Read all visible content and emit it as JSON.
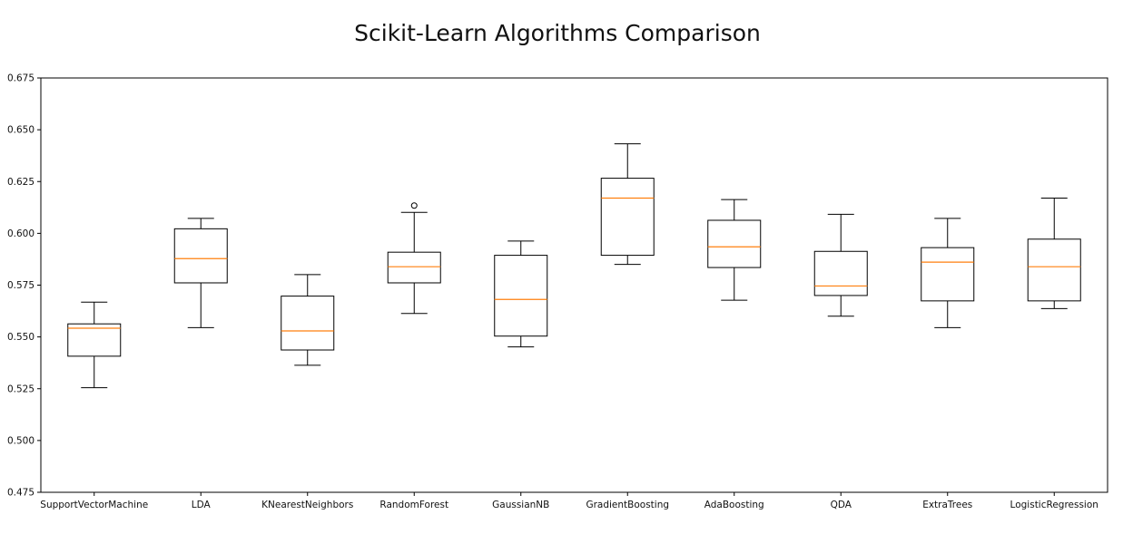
{
  "chart_data": {
    "type": "box",
    "title": "Scikit-Learn Algorithms Comparison",
    "xlabel": "",
    "ylabel": "",
    "ylim": [
      0.475,
      0.675
    ],
    "yticks": [
      "0.475",
      "0.500",
      "0.525",
      "0.550",
      "0.575",
      "0.600",
      "0.625",
      "0.650",
      "0.675"
    ],
    "grid": false,
    "legend": "none",
    "colors": {
      "box": "#000000",
      "median": "#ff7f0e",
      "axes": "#000000",
      "outlier": "#000000"
    },
    "categories": [
      "SupportVectorMachine",
      "LDA",
      "KNearestNeighbors",
      "RandomForest",
      "GaussianNB",
      "GradientBoosting",
      "AdaBoosting",
      "QDA",
      "ExtraTrees",
      "LogisticRegression"
    ],
    "boxes": [
      {
        "whisker_low": 0.5255,
        "q1": 0.5407,
        "median": 0.5542,
        "q3": 0.5563,
        "whisker_high": 0.5668,
        "outliers": []
      },
      {
        "whisker_low": 0.5545,
        "q1": 0.5761,
        "median": 0.5878,
        "q3": 0.6022,
        "whisker_high": 0.6072,
        "outliers": []
      },
      {
        "whisker_low": 0.5363,
        "q1": 0.5437,
        "median": 0.5529,
        "q3": 0.5697,
        "whisker_high": 0.5801,
        "outliers": []
      },
      {
        "whisker_low": 0.5613,
        "q1": 0.5761,
        "median": 0.5839,
        "q3": 0.5909,
        "whisker_high": 0.6101,
        "outliers": [
          0.6134
        ]
      },
      {
        "whisker_low": 0.5452,
        "q1": 0.5504,
        "median": 0.5681,
        "q3": 0.5894,
        "whisker_high": 0.5963,
        "outliers": []
      },
      {
        "whisker_low": 0.585,
        "q1": 0.5894,
        "median": 0.617,
        "q3": 0.6266,
        "whisker_high": 0.6432,
        "outliers": []
      },
      {
        "whisker_low": 0.5677,
        "q1": 0.5835,
        "median": 0.5935,
        "q3": 0.6063,
        "whisker_high": 0.6163,
        "outliers": []
      },
      {
        "whisker_low": 0.56,
        "q1": 0.57,
        "median": 0.5746,
        "q3": 0.5913,
        "whisker_high": 0.6092,
        "outliers": []
      },
      {
        "whisker_low": 0.5545,
        "q1": 0.5674,
        "median": 0.5861,
        "q3": 0.5931,
        "whisker_high": 0.6072,
        "outliers": []
      },
      {
        "whisker_low": 0.5637,
        "q1": 0.5674,
        "median": 0.5839,
        "q3": 0.5972,
        "whisker_high": 0.617,
        "outliers": []
      }
    ]
  }
}
